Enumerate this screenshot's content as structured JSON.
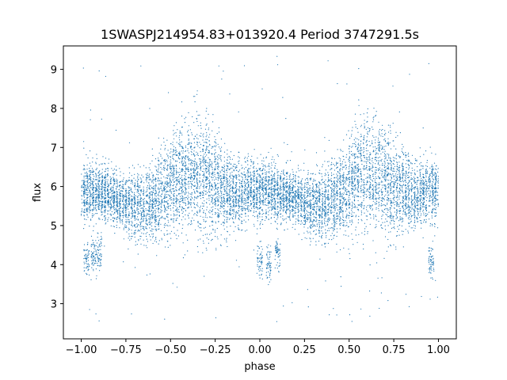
{
  "chart_data": {
    "type": "scatter",
    "title": "1SWASPJ214954.83+013920.4 Period 3747291.5s",
    "xlabel": "phase",
    "ylabel": "flux",
    "xlim": [
      -1.1,
      1.1
    ],
    "ylim": [
      2.1,
      9.6
    ],
    "xticks": [
      -1.0,
      -0.75,
      -0.5,
      -0.25,
      0.0,
      0.25,
      0.5,
      0.75,
      1.0
    ],
    "xtick_labels": [
      "−1.00",
      "−0.75",
      "−0.50",
      "−0.25",
      "0.00",
      "0.25",
      "0.50",
      "0.75",
      "1.00"
    ],
    "yticks": [
      3,
      4,
      5,
      6,
      7,
      8,
      9
    ],
    "ytick_labels": [
      "3",
      "4",
      "5",
      "6",
      "7",
      "8",
      "9"
    ],
    "grid": false,
    "marker_color": "#1f77b4",
    "series": [
      {
        "phase": [
          -1.0,
          -0.95,
          -0.9,
          -0.85,
          -0.8,
          -0.75,
          -0.7,
          -0.65,
          -0.6,
          -0.55,
          -0.5,
          -0.45,
          -0.4,
          -0.35,
          -0.3,
          -0.25,
          -0.2,
          -0.15,
          -0.1,
          -0.05,
          0.0,
          0.05,
          0.1,
          0.15,
          0.2,
          0.25,
          0.3,
          0.35,
          0.4,
          0.45,
          0.5,
          0.55,
          0.6,
          0.65,
          0.7,
          0.75,
          0.8,
          0.85,
          0.9,
          0.95,
          1.0
        ],
        "flux_median": [
          5.9,
          5.9,
          5.8,
          5.8,
          5.7,
          5.6,
          5.5,
          5.5,
          5.6,
          5.8,
          6.0,
          6.2,
          6.3,
          6.3,
          6.2,
          6.0,
          5.9,
          5.8,
          5.8,
          5.9,
          5.9,
          5.9,
          5.8,
          5.8,
          5.7,
          5.6,
          5.5,
          5.5,
          5.6,
          5.8,
          6.0,
          6.2,
          6.3,
          6.3,
          6.2,
          6.0,
          5.9,
          5.8,
          5.8,
          5.9,
          5.9
        ],
        "flux_spread": [
          0.7,
          0.7,
          0.6,
          0.6,
          0.6,
          0.7,
          0.8,
          0.8,
          0.9,
          1.0,
          1.1,
          1.2,
          1.3,
          1.3,
          1.3,
          1.2,
          1.0,
          0.8,
          0.7,
          0.7,
          0.7,
          0.7,
          0.6,
          0.6,
          0.6,
          0.7,
          0.8,
          0.8,
          0.9,
          1.0,
          1.1,
          1.2,
          1.3,
          1.3,
          1.3,
          1.2,
          1.0,
          0.8,
          0.7,
          0.7,
          0.7
        ]
      }
    ],
    "low_clumps": [
      {
        "phase": -0.97,
        "flux": 4.1
      },
      {
        "phase": -0.93,
        "flux": 4.2
      },
      {
        "phase": -0.9,
        "flux": 4.3
      },
      {
        "phase": 0.0,
        "flux": 4.1
      },
      {
        "phase": 0.05,
        "flux": 4.0
      },
      {
        "phase": 0.1,
        "flux": 4.3
      },
      {
        "phase": 0.96,
        "flux": 4.1
      }
    ]
  }
}
